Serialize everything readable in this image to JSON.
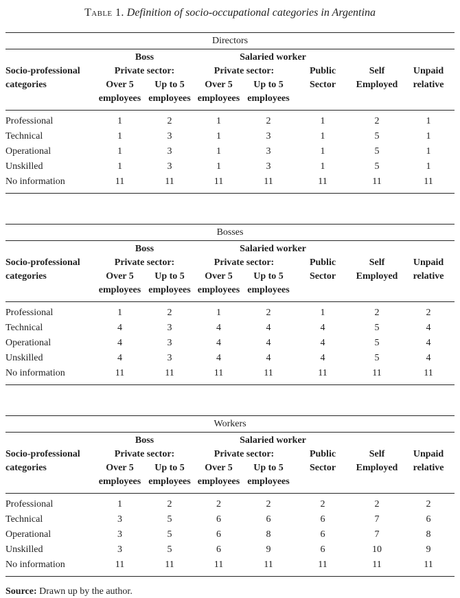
{
  "page": {
    "title_label": "Table 1.",
    "title_text": "Definition of socio-occupational categories in Argentina"
  },
  "header": {
    "stub_line1": "Socio-professional",
    "stub_line2": "categories",
    "group_boss": "Boss",
    "group_salaried": "Salaried worker",
    "private_sector": "Private sector:",
    "over5": "Over 5",
    "upto5": "Up to 5",
    "employees": "employees",
    "public_line1": "Public",
    "public_line2": "Sector",
    "self_line1": "Self",
    "self_line2": "Employed",
    "unpaid_line1": "Unpaid",
    "unpaid_line2": "relative"
  },
  "tables": [
    {
      "section": "Directors",
      "rows": [
        {
          "label": "Professional",
          "values": [
            "1",
            "2",
            "1",
            "2",
            "1",
            "2",
            "1"
          ]
        },
        {
          "label": "Technical",
          "values": [
            "1",
            "3",
            "1",
            "3",
            "1",
            "5",
            "1"
          ]
        },
        {
          "label": "Operational",
          "values": [
            "1",
            "3",
            "1",
            "3",
            "1",
            "5",
            "1"
          ]
        },
        {
          "label": "Unskilled",
          "values": [
            "1",
            "3",
            "1",
            "3",
            "1",
            "5",
            "1"
          ]
        },
        {
          "label": "No information",
          "values": [
            "11",
            "11",
            "11",
            "11",
            "11",
            "11",
            "11"
          ]
        }
      ]
    },
    {
      "section": "Bosses",
      "rows": [
        {
          "label": "Professional",
          "values": [
            "1",
            "2",
            "1",
            "2",
            "1",
            "2",
            "2"
          ]
        },
        {
          "label": "Technical",
          "values": [
            "4",
            "3",
            "4",
            "4",
            "4",
            "5",
            "4"
          ]
        },
        {
          "label": "Operational",
          "values": [
            "4",
            "3",
            "4",
            "4",
            "4",
            "5",
            "4"
          ]
        },
        {
          "label": "Unskilled",
          "values": [
            "4",
            "3",
            "4",
            "4",
            "4",
            "5",
            "4"
          ]
        },
        {
          "label": "No information",
          "values": [
            "11",
            "11",
            "11",
            "11",
            "11",
            "11",
            "11"
          ]
        }
      ]
    },
    {
      "section": "Workers",
      "rows": [
        {
          "label": "Professional",
          "values": [
            "1",
            "2",
            "2",
            "2",
            "2",
            "2",
            "2"
          ]
        },
        {
          "label": "Technical",
          "values": [
            "3",
            "5",
            "6",
            "6",
            "6",
            "7",
            "6"
          ]
        },
        {
          "label": "Operational",
          "values": [
            "3",
            "5",
            "6",
            "8",
            "6",
            "7",
            "8"
          ]
        },
        {
          "label": "Unskilled",
          "values": [
            "3",
            "5",
            "6",
            "9",
            "6",
            "10",
            "9"
          ]
        },
        {
          "label": "No information",
          "values": [
            "11",
            "11",
            "11",
            "11",
            "11",
            "11",
            "11"
          ]
        }
      ]
    }
  ],
  "source": {
    "label": "Source:",
    "text": "Drawn up by the author."
  }
}
